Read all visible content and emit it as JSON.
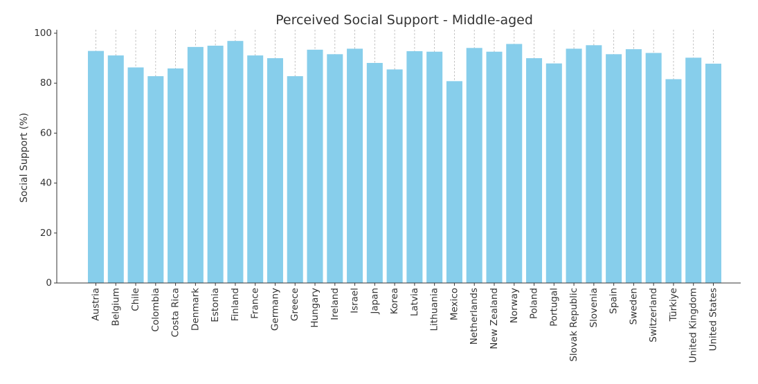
{
  "chart_data": {
    "type": "bar",
    "title": "Perceived Social Support - Middle-aged",
    "xlabel": "",
    "ylabel": "Social Support (%)",
    "ylim": [
      0,
      100
    ],
    "yticks": [
      0,
      20,
      40,
      60,
      80,
      100
    ],
    "grid": "vertical dashed",
    "bar_color": "#87CEEB",
    "categories": [
      "Austria",
      "Belgium",
      "Chile",
      "Colombia",
      "Costa Rica",
      "Denmark",
      "Estonia",
      "Finland",
      "France",
      "Germany",
      "Greece",
      "Hungary",
      "Ireland",
      "Israel",
      "Japan",
      "Korea",
      "Latvia",
      "Lithuania",
      "Mexico",
      "Netherlands",
      "New Zealand",
      "Norway",
      "Poland",
      "Portugal",
      "Slovak Republic",
      "Slovenia",
      "Spain",
      "Sweden",
      "Switzerland",
      "Türkiye",
      "United Kingdom",
      "United States"
    ],
    "values": [
      92.9,
      91.1,
      86.3,
      82.8,
      85.9,
      94.5,
      95.0,
      96.9,
      91.1,
      90.0,
      82.8,
      93.4,
      91.6,
      93.8,
      88.1,
      85.5,
      92.8,
      92.6,
      80.8,
      94.1,
      92.6,
      95.7,
      90.0,
      87.9,
      93.8,
      95.2,
      91.6,
      93.6,
      92.1,
      81.6,
      90.2,
      87.8
    ]
  }
}
